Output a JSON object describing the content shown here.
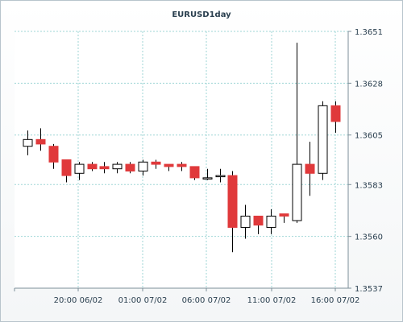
{
  "chart_data": {
    "type": "candlestick",
    "title": "EURUSD1day",
    "y_axis": {
      "position": "right",
      "ticks": [
        "1.3537",
        "1.3560",
        "1.3583",
        "1.3605",
        "1.3628",
        "1.3651"
      ],
      "ylim": [
        1.3537,
        1.3651
      ]
    },
    "x_axis": {
      "ticks": [
        "20:00 06/02",
        "01:00 07/02",
        "06:00 07/02",
        "11:00 07/02",
        "16:00 07/02"
      ]
    },
    "grid": true,
    "colors": {
      "up_fill": "#ffffff",
      "down_fill": "#e0393b",
      "wick": "#000000",
      "grid": "#9fd6d6",
      "axis": "#7d8f99",
      "text": "#2a3f4f"
    },
    "candles": [
      {
        "open": 1.36,
        "high": 1.3607,
        "low": 1.3596,
        "close": 1.3603
      },
      {
        "open": 1.3603,
        "high": 1.3608,
        "low": 1.3598,
        "close": 1.3601
      },
      {
        "open": 1.36,
        "high": 1.3601,
        "low": 1.359,
        "close": 1.3593
      },
      {
        "open": 1.3594,
        "high": 1.3594,
        "low": 1.3584,
        "close": 1.3587
      },
      {
        "open": 1.3588,
        "high": 1.3593,
        "low": 1.3585,
        "close": 1.3592
      },
      {
        "open": 1.3592,
        "high": 1.3593,
        "low": 1.3589,
        "close": 1.359
      },
      {
        "open": 1.3591,
        "high": 1.3593,
        "low": 1.3588,
        "close": 1.359
      },
      {
        "open": 1.359,
        "high": 1.3593,
        "low": 1.3588,
        "close": 1.3592
      },
      {
        "open": 1.3592,
        "high": 1.3593,
        "low": 1.3588,
        "close": 1.3589
      },
      {
        "open": 1.3589,
        "high": 1.3594,
        "low": 1.3587,
        "close": 1.3593
      },
      {
        "open": 1.3593,
        "high": 1.3594,
        "low": 1.359,
        "close": 1.3592
      },
      {
        "open": 1.3592,
        "high": 1.3592,
        "low": 1.3589,
        "close": 1.3591
      },
      {
        "open": 1.3592,
        "high": 1.3593,
        "low": 1.3589,
        "close": 1.3591
      },
      {
        "open": 1.3591,
        "high": 1.3591,
        "low": 1.3585,
        "close": 1.3586
      },
      {
        "open": 1.3586,
        "high": 1.359,
        "low": 1.3585,
        "close": 1.3586
      },
      {
        "open": 1.3587,
        "high": 1.359,
        "low": 1.3584,
        "close": 1.3587
      },
      {
        "open": 1.3587,
        "high": 1.3589,
        "low": 1.3553,
        "close": 1.3564
      },
      {
        "open": 1.3564,
        "high": 1.3574,
        "low": 1.3559,
        "close": 1.3569
      },
      {
        "open": 1.3569,
        "high": 1.3569,
        "low": 1.3561,
        "close": 1.3565
      },
      {
        "open": 1.3564,
        "high": 1.3572,
        "low": 1.3561,
        "close": 1.3569
      },
      {
        "open": 1.357,
        "high": 1.357,
        "low": 1.3566,
        "close": 1.3569
      },
      {
        "open": 1.3567,
        "high": 1.3646,
        "low": 1.3566,
        "close": 1.3592
      },
      {
        "open": 1.3592,
        "high": 1.3602,
        "low": 1.3578,
        "close": 1.3588
      },
      {
        "open": 1.3588,
        "high": 1.362,
        "low": 1.3585,
        "close": 1.3618
      },
      {
        "open": 1.3618,
        "high": 1.362,
        "low": 1.3606,
        "close": 1.3611
      }
    ]
  }
}
